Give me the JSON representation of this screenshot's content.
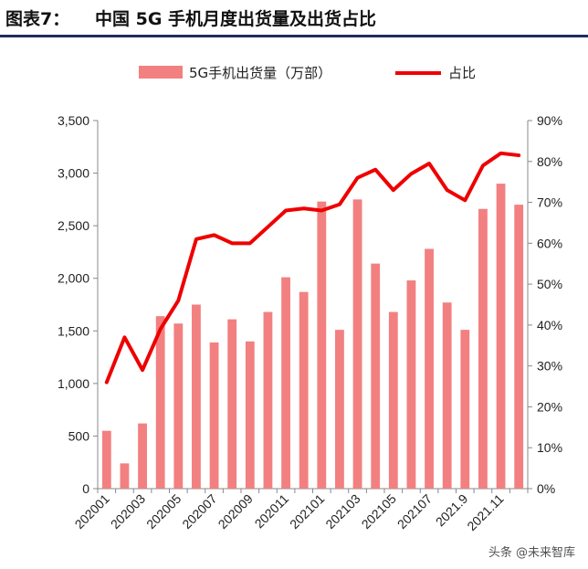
{
  "header": {
    "figure_label": "图表7：",
    "title": "中国 5G 手机月度出货量及出货占比"
  },
  "watermark": "头条 @未来智库",
  "colors": {
    "bar": "#f28080",
    "line": "#ee0000",
    "rule": "#1f2d5a"
  },
  "chart_data": {
    "type": "bar+line",
    "title": "中国 5G 手机月度出货量及出货占比",
    "categories": [
      "202001",
      "202002",
      "202003",
      "202004",
      "202005",
      "202006",
      "202007",
      "202008",
      "202009",
      "202010",
      "202011",
      "202012",
      "202101",
      "202102",
      "202103",
      "202104",
      "202105",
      "202106",
      "202107",
      "202108",
      "202109",
      "2021.1",
      "2021.11",
      "2021.12"
    ],
    "x_tick_labels": [
      {
        "index": 0,
        "label": "202001"
      },
      {
        "index": 2,
        "label": "202003"
      },
      {
        "index": 4,
        "label": "202005"
      },
      {
        "index": 6,
        "label": "202007"
      },
      {
        "index": 8,
        "label": "202009"
      },
      {
        "index": 10,
        "label": "202011"
      },
      {
        "index": 12,
        "label": "202101"
      },
      {
        "index": 14,
        "label": "202103"
      },
      {
        "index": 16,
        "label": "202105"
      },
      {
        "index": 18,
        "label": "202107"
      },
      {
        "index": 20,
        "label": "2021.9"
      },
      {
        "index": 22,
        "label": "2021.11"
      }
    ],
    "series": [
      {
        "name": "5G手机出货量（万部）",
        "type": "bar",
        "axis": "left",
        "values": [
          550,
          240,
          620,
          1640,
          1570,
          1750,
          1390,
          1610,
          1400,
          1680,
          2010,
          1870,
          2730,
          1510,
          2750,
          2140,
          1680,
          1980,
          2280,
          1770,
          1510,
          2660,
          2900,
          2700
        ]
      },
      {
        "name": "占比",
        "type": "line",
        "axis": "right",
        "values": [
          26,
          37,
          29,
          39,
          46,
          61,
          62,
          60,
          60,
          64,
          68,
          68.5,
          68,
          69.5,
          76,
          78,
          73,
          77,
          79.5,
          73,
          70.5,
          79,
          82,
          81.5
        ]
      }
    ],
    "y_left": {
      "min": 0,
      "max": 3500,
      "ticks": [
        0,
        500,
        1000,
        1500,
        2000,
        2500,
        3000,
        3500
      ],
      "tick_labels": [
        "0",
        "500",
        "1,000",
        "1,500",
        "2,000",
        "2,500",
        "3,000",
        "3,500"
      ]
    },
    "y_right": {
      "min": 0,
      "max": 90,
      "ticks": [
        0,
        10,
        20,
        30,
        40,
        50,
        60,
        70,
        80,
        90
      ],
      "tick_labels": [
        "0%",
        "10%",
        "20%",
        "30%",
        "40%",
        "50%",
        "60%",
        "70%",
        "80%",
        "90%"
      ]
    },
    "legend": [
      "5G手机出货量（万部）",
      "占比"
    ],
    "legend_position": "top-center",
    "grid": false
  }
}
